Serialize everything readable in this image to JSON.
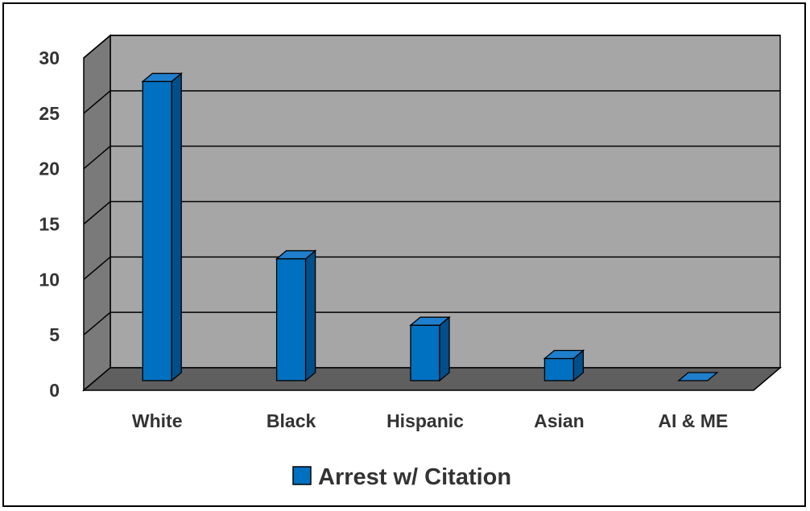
{
  "chart_data": {
    "type": "bar",
    "title": "",
    "xlabel": "",
    "ylabel": "",
    "categories": [
      "White",
      "Black",
      "Hispanic",
      "Asian",
      "AI & ME"
    ],
    "series": [
      {
        "name": "Arrest w/ Citation",
        "values": [
          27,
          11,
          5,
          2,
          0
        ]
      }
    ],
    "ylim": [
      0,
      30
    ],
    "yticks": [
      "0",
      "5",
      "10",
      "15",
      "20",
      "25",
      "30"
    ],
    "grid": true,
    "legend": "bottom",
    "style": "3d",
    "colors": {
      "bar_front": "#0070c0",
      "bar_side": "#004f8a",
      "bar_top": "#1f7fcc",
      "wall_back": "#a6a6a6",
      "wall_side": "#7a7a7a",
      "floor": "#5f5f5f",
      "text": "#333333"
    }
  }
}
